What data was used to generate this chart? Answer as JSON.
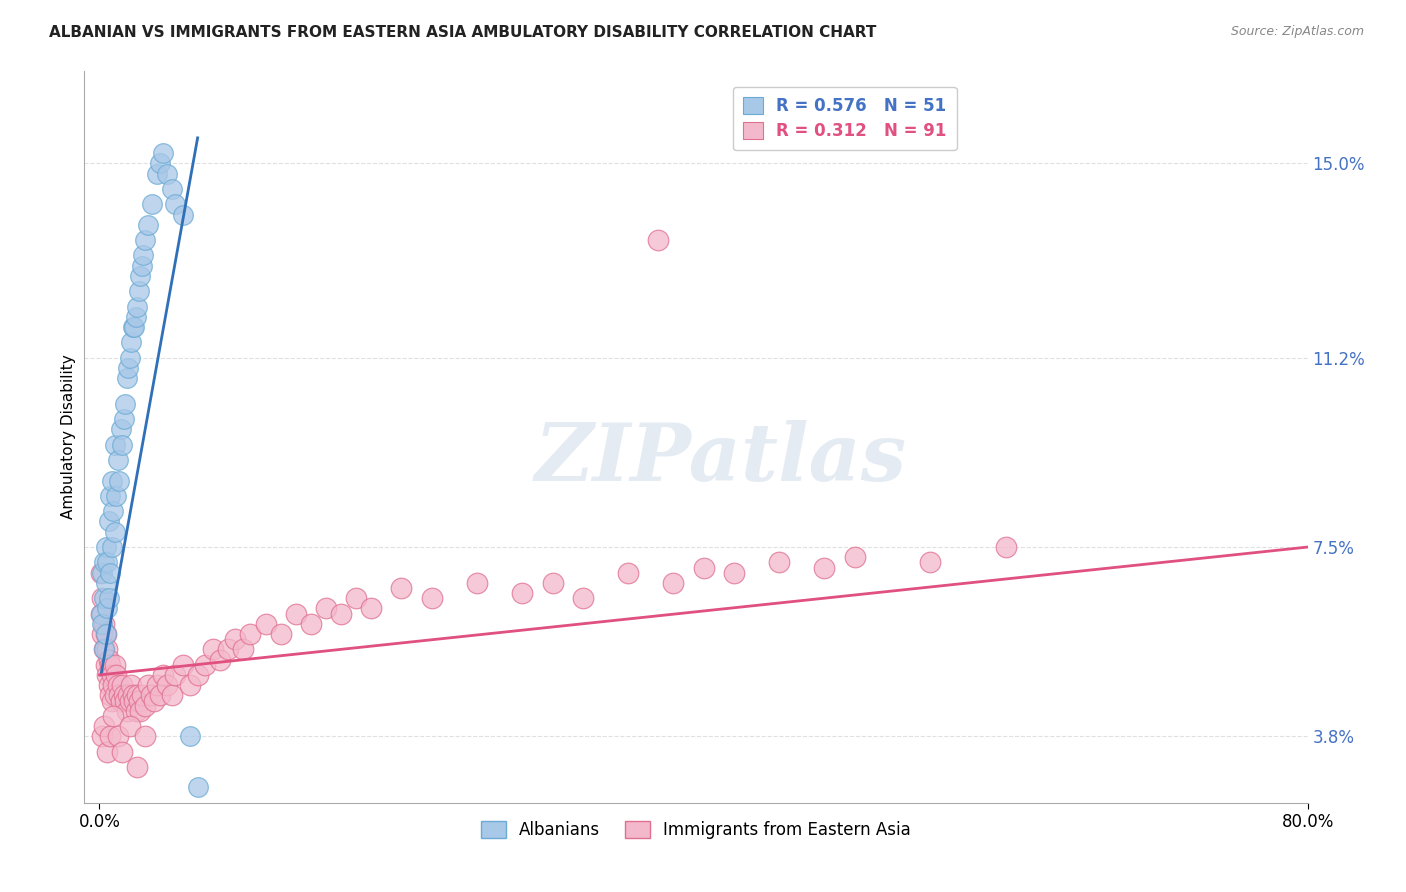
{
  "title": "ALBANIAN VS IMMIGRANTS FROM EASTERN ASIA AMBULATORY DISABILITY CORRELATION CHART",
  "source": "Source: ZipAtlas.com",
  "ylabel_ticks": [
    0.038,
    0.075,
    0.112,
    0.15
  ],
  "ylabel_tick_labels": [
    "3.8%",
    "7.5%",
    "11.2%",
    "15.0%"
  ],
  "xlim": [
    0.0,
    0.8
  ],
  "ylim": [
    0.025,
    0.168
  ],
  "ylabel": "Ambulatory Disability",
  "legend_labels": [
    "Albanians",
    "Immigrants from Eastern Asia"
  ],
  "series1_color": "#a8c8e8",
  "series2_color": "#f4b8cc",
  "series1_edge": "#6aaad4",
  "series2_edge": "#e07090",
  "line1_color": "#3070b8",
  "line2_color": "#e05080",
  "R1": 0.576,
  "N1": 51,
  "R2": 0.312,
  "N2": 91,
  "watermark": "ZIPatlas",
  "background": "#ffffff",
  "grid_color": "#dddddd",
  "alb_x": [
    0.001,
    0.002,
    0.002,
    0.003,
    0.003,
    0.003,
    0.004,
    0.004,
    0.004,
    0.005,
    0.005,
    0.006,
    0.006,
    0.007,
    0.007,
    0.008,
    0.008,
    0.009,
    0.01,
    0.01,
    0.011,
    0.012,
    0.013,
    0.014,
    0.015,
    0.016,
    0.017,
    0.018,
    0.019,
    0.02,
    0.021,
    0.022,
    0.023,
    0.024,
    0.025,
    0.026,
    0.027,
    0.028,
    0.029,
    0.03,
    0.032,
    0.035,
    0.038,
    0.04,
    0.042,
    0.045,
    0.048,
    0.05,
    0.055,
    0.06,
    0.065
  ],
  "alb_y": [
    0.062,
    0.06,
    0.07,
    0.055,
    0.065,
    0.072,
    0.058,
    0.068,
    0.075,
    0.063,
    0.072,
    0.065,
    0.08,
    0.07,
    0.085,
    0.075,
    0.088,
    0.082,
    0.078,
    0.095,
    0.085,
    0.092,
    0.088,
    0.098,
    0.095,
    0.1,
    0.103,
    0.108,
    0.11,
    0.112,
    0.115,
    0.118,
    0.118,
    0.12,
    0.122,
    0.125,
    0.128,
    0.13,
    0.132,
    0.135,
    0.138,
    0.142,
    0.148,
    0.15,
    0.152,
    0.148,
    0.145,
    0.142,
    0.14,
    0.038,
    0.028
  ],
  "ea_x": [
    0.001,
    0.001,
    0.002,
    0.002,
    0.003,
    0.003,
    0.004,
    0.004,
    0.005,
    0.005,
    0.006,
    0.006,
    0.007,
    0.007,
    0.008,
    0.008,
    0.009,
    0.01,
    0.01,
    0.011,
    0.012,
    0.013,
    0.014,
    0.015,
    0.016,
    0.017,
    0.018,
    0.019,
    0.02,
    0.021,
    0.022,
    0.023,
    0.024,
    0.025,
    0.026,
    0.027,
    0.028,
    0.03,
    0.032,
    0.034,
    0.036,
    0.038,
    0.04,
    0.042,
    0.045,
    0.048,
    0.05,
    0.055,
    0.06,
    0.065,
    0.07,
    0.075,
    0.08,
    0.085,
    0.09,
    0.095,
    0.1,
    0.11,
    0.12,
    0.13,
    0.14,
    0.15,
    0.16,
    0.17,
    0.18,
    0.2,
    0.22,
    0.25,
    0.28,
    0.3,
    0.32,
    0.35,
    0.38,
    0.4,
    0.42,
    0.45,
    0.48,
    0.5,
    0.55,
    0.6,
    0.002,
    0.003,
    0.005,
    0.007,
    0.009,
    0.012,
    0.015,
    0.02,
    0.025,
    0.03,
    0.37
  ],
  "ea_y": [
    0.062,
    0.07,
    0.058,
    0.065,
    0.055,
    0.06,
    0.052,
    0.058,
    0.05,
    0.055,
    0.048,
    0.053,
    0.046,
    0.052,
    0.045,
    0.05,
    0.048,
    0.046,
    0.052,
    0.05,
    0.048,
    0.046,
    0.045,
    0.048,
    0.046,
    0.045,
    0.043,
    0.046,
    0.045,
    0.048,
    0.046,
    0.045,
    0.043,
    0.046,
    0.045,
    0.043,
    0.046,
    0.044,
    0.048,
    0.046,
    0.045,
    0.048,
    0.046,
    0.05,
    0.048,
    0.046,
    0.05,
    0.052,
    0.048,
    0.05,
    0.052,
    0.055,
    0.053,
    0.055,
    0.057,
    0.055,
    0.058,
    0.06,
    0.058,
    0.062,
    0.06,
    0.063,
    0.062,
    0.065,
    0.063,
    0.067,
    0.065,
    0.068,
    0.066,
    0.068,
    0.065,
    0.07,
    0.068,
    0.071,
    0.07,
    0.072,
    0.071,
    0.073,
    0.072,
    0.075,
    0.038,
    0.04,
    0.035,
    0.038,
    0.042,
    0.038,
    0.035,
    0.04,
    0.032,
    0.038,
    0.135
  ],
  "alb_line_x": [
    0.001,
    0.065
  ],
  "alb_line_y": [
    0.05,
    0.155
  ],
  "ea_line_x": [
    0.0,
    0.8
  ],
  "ea_line_y": [
    0.05,
    0.075
  ]
}
